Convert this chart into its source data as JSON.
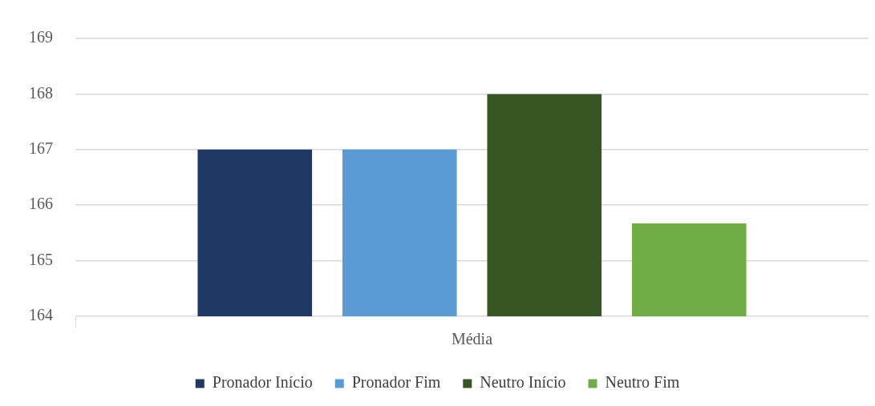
{
  "chart_data": {
    "type": "bar",
    "categories": [
      "Média"
    ],
    "series": [
      {
        "name": "Pronador Início",
        "color": "#203864",
        "values": [
          167
        ]
      },
      {
        "name": "Pronador Fim",
        "color": "#5b9bd5",
        "values": [
          167
        ]
      },
      {
        "name": "Neutro Início",
        "color": "#375623",
        "values": [
          168
        ]
      },
      {
        "name": "Neutro Fim",
        "color": "#70ad47",
        "values": [
          165.67
        ]
      }
    ],
    "ylim": [
      164,
      169
    ],
    "yticks": [
      164,
      165,
      166,
      167,
      168,
      169
    ],
    "grid": "y",
    "legend": "bottom"
  }
}
